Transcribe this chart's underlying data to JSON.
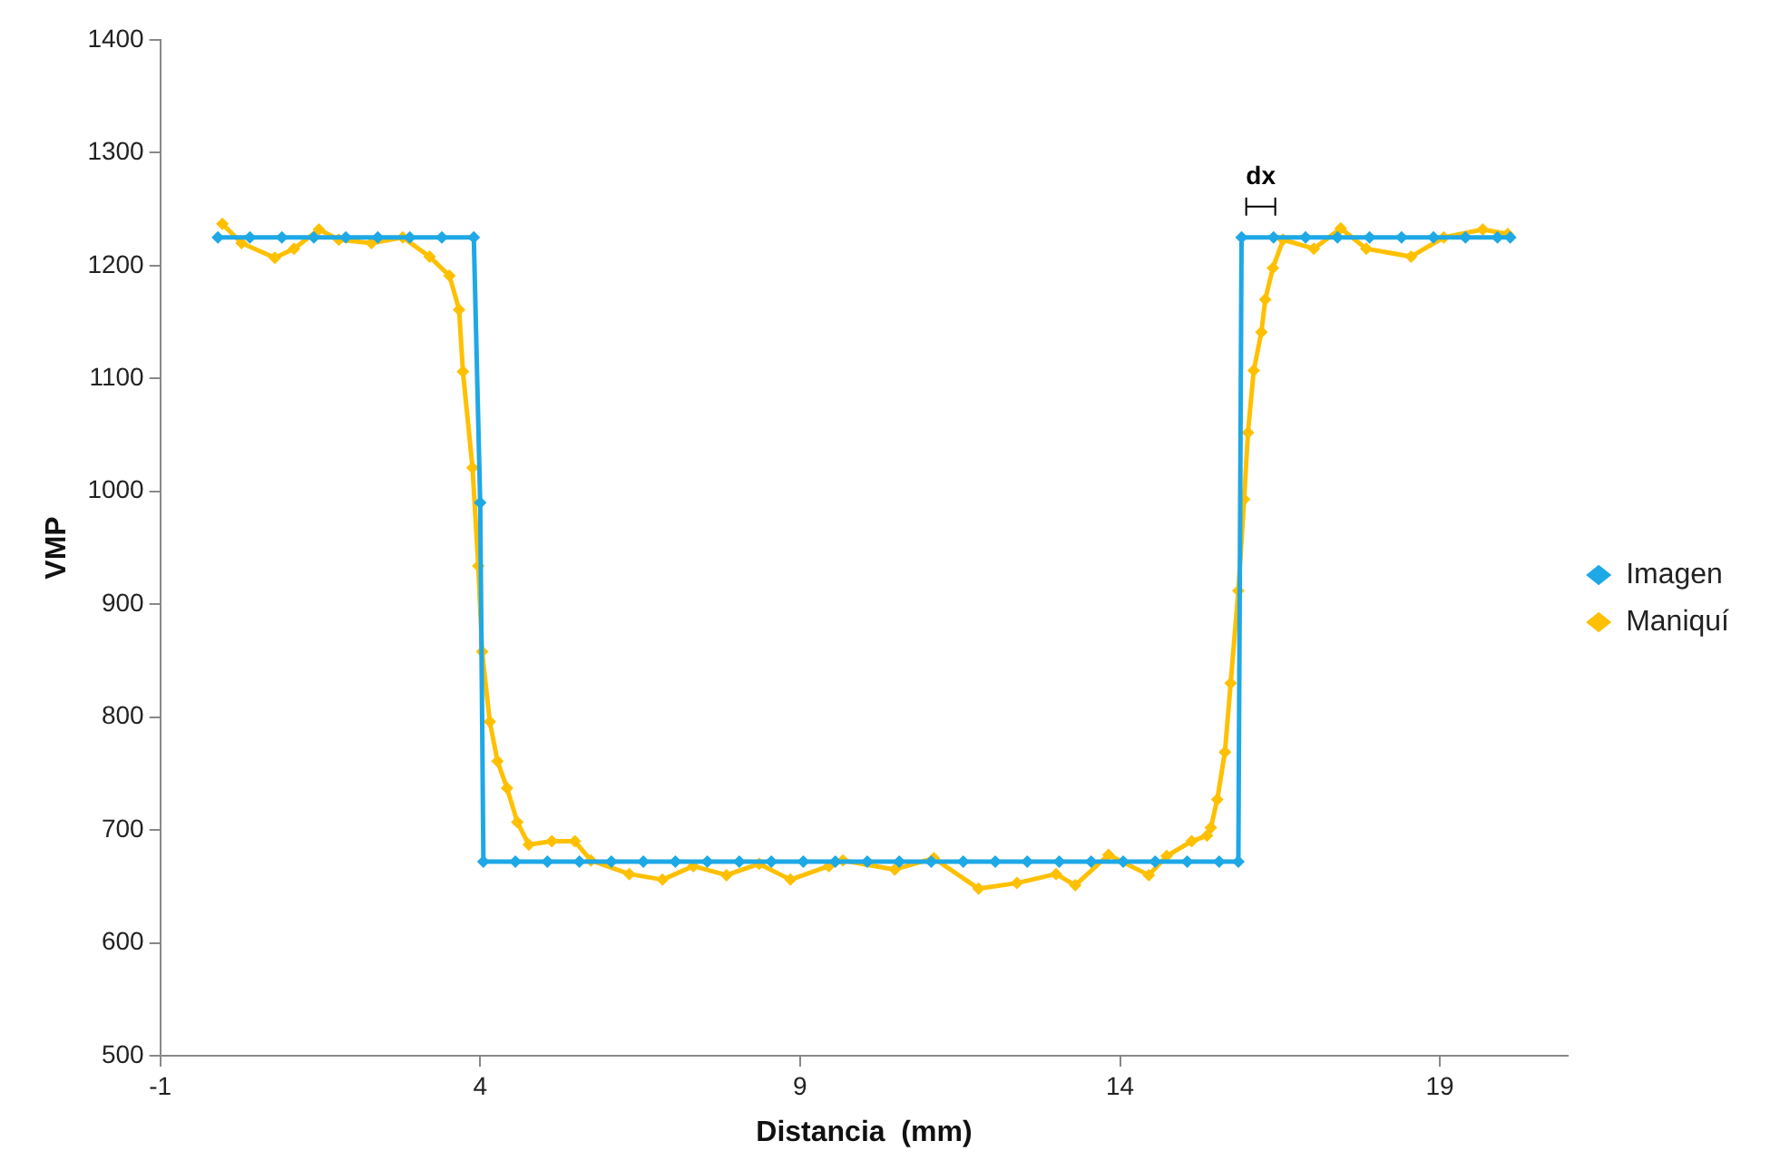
{
  "chart_data": {
    "type": "line",
    "xlabel": "Distancia  (mm)",
    "ylabel": "VMP",
    "xlim": [
      -1,
      21
    ],
    "xticks": [
      -1,
      4,
      9,
      14,
      19
    ],
    "ylim": [
      500,
      1400
    ],
    "yticks": [
      500,
      600,
      700,
      800,
      900,
      1000,
      1100,
      1200,
      1300,
      1400
    ],
    "grid": false,
    "legend": "right",
    "marker": "diamond",
    "line_style": "solid",
    "annotations": [
      {
        "text": "dx",
        "x": 16.2,
        "y": 1225
      }
    ],
    "series": [
      {
        "name": "Imagen",
        "color": "#1ea8e6",
        "x": [
          -0.1,
          0.4,
          0.9,
          1.4,
          1.9,
          2.4,
          2.9,
          3.4,
          3.9,
          4.0,
          4.05,
          4.55,
          5.05,
          5.55,
          6.05,
          6.55,
          7.05,
          7.55,
          8.05,
          8.55,
          9.05,
          9.55,
          10.05,
          10.55,
          11.05,
          11.55,
          12.05,
          12.55,
          13.05,
          13.55,
          14.05,
          14.55,
          15.05,
          15.55,
          15.85,
          15.9,
          16.4,
          16.9,
          17.4,
          17.9,
          18.4,
          18.9,
          19.4,
          19.9,
          20.1
        ],
        "values": [
          1225,
          1225,
          1225,
          1225,
          1225,
          1225,
          1225,
          1225,
          1225,
          990,
          672,
          672,
          672,
          672,
          672,
          672,
          672,
          672,
          672,
          672,
          672,
          672,
          672,
          672,
          672,
          672,
          672,
          672,
          672,
          672,
          672,
          672,
          672,
          672,
          672,
          1225,
          1225,
          1225,
          1225,
          1225,
          1225,
          1225,
          1225,
          1225,
          1225
        ]
      },
      {
        "name": "Maniquí",
        "color": "#ffc000",
        "x": [
          -0.03,
          0.27,
          0.79,
          1.09,
          1.48,
          1.79,
          2.3,
          2.79,
          3.21,
          3.52,
          3.67,
          3.73,
          3.88,
          3.97,
          4.03,
          4.15,
          4.27,
          4.42,
          4.58,
          4.76,
          5.12,
          5.48,
          5.73,
          6.33,
          6.85,
          7.33,
          7.85,
          8.36,
          8.85,
          9.45,
          9.67,
          10.48,
          11.09,
          11.79,
          12.39,
          13.0,
          13.3,
          13.82,
          14.45,
          14.73,
          15.12,
          15.36,
          15.42,
          15.52,
          15.64,
          15.73,
          15.85,
          15.94,
          16.0,
          16.09,
          16.21,
          16.27,
          16.39,
          16.55,
          17.03,
          17.45,
          17.85,
          18.55,
          19.06,
          19.67,
          20.06
        ],
        "values": [
          1237,
          1220,
          1207,
          1215,
          1232,
          1223,
          1220,
          1225,
          1208,
          1191,
          1161,
          1106,
          1021,
          934,
          858,
          796,
          761,
          737,
          707,
          687,
          690,
          690,
          673,
          661,
          656,
          668,
          660,
          670,
          656,
          668,
          673,
          665,
          675,
          648,
          653,
          661,
          651,
          678,
          660,
          677,
          690,
          695,
          702,
          727,
          769,
          830,
          912,
          993,
          1052,
          1107,
          1141,
          1170,
          1198,
          1223,
          1215,
          1233,
          1215,
          1208,
          1225,
          1232,
          1228
        ]
      }
    ]
  }
}
